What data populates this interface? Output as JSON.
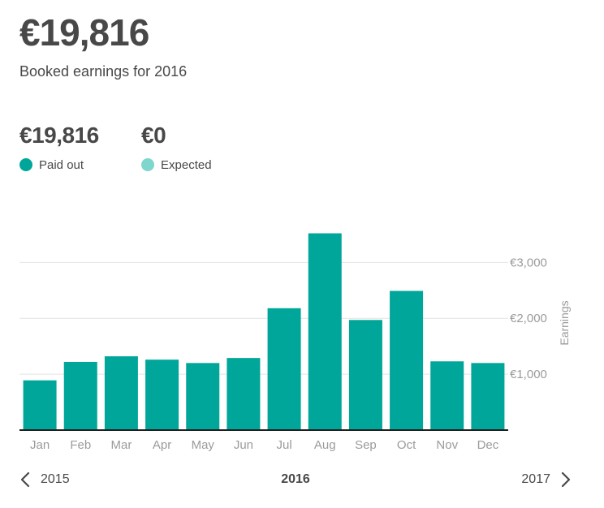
{
  "summary": {
    "total": "€19,816",
    "subtitle": "Booked earnings for 2016"
  },
  "stats": {
    "paid_out": {
      "value": "€19,816",
      "label": "Paid out",
      "color": "#00A699"
    },
    "expected": {
      "value": "€0",
      "label": "Expected",
      "color": "#7FD6CC"
    }
  },
  "navigation": {
    "prev_label": "2015",
    "current_label": "2016",
    "next_label": "2017",
    "prev_icon": "chevron-left-icon",
    "next_icon": "chevron-right-icon"
  },
  "chart_data": {
    "type": "bar",
    "categories": [
      "Jan",
      "Feb",
      "Mar",
      "Apr",
      "May",
      "Jun",
      "Jul",
      "Aug",
      "Sep",
      "Oct",
      "Nov",
      "Dec"
    ],
    "values": [
      890,
      1220,
      1320,
      1260,
      1200,
      1290,
      2180,
      3520,
      1970,
      2490,
      1230,
      1200
    ],
    "ylabel": "Earnings",
    "yticks": [
      1000,
      2000,
      3000
    ],
    "ytick_labels": [
      "€1,000",
      "€2,000",
      "€3,000"
    ],
    "ylim": [
      0,
      3600
    ],
    "grid": true,
    "bar_color": "#00A699",
    "axis_position": "right"
  }
}
